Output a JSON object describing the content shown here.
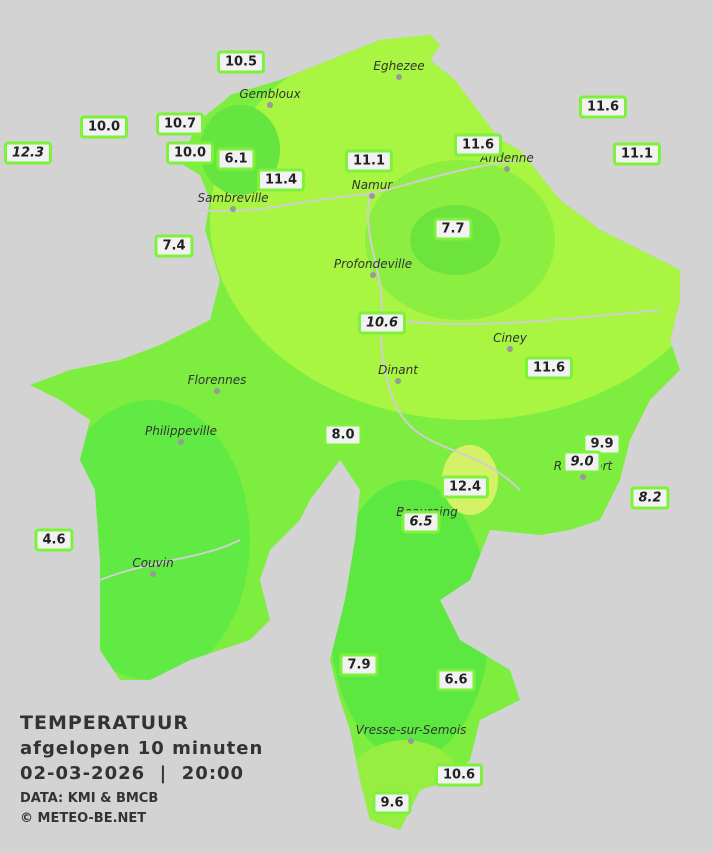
{
  "title": {
    "line1": "TEMPERATUUR",
    "line2": "afgelopen 10 minuten",
    "line3": "02-03-2026  |  20:00",
    "source": "DATA: KMI & BMCB",
    "credit": "© METEO-BE.NET"
  },
  "places": [
    "Eghezee",
    "Gembloux",
    "Andenne",
    "Namur",
    "Sambreville",
    "Profondeville",
    "Ciney",
    "Dinant",
    "Florennes",
    "Philippeville",
    "Beauraing",
    "Rochefort",
    "Couvin",
    "Vresse-sur-Semois"
  ],
  "stations": [
    {
      "label": "10.5",
      "italic": false
    },
    {
      "label": "10.0",
      "italic": false
    },
    {
      "label": "10.7",
      "italic": false
    },
    {
      "label": "12.3",
      "italic": true
    },
    {
      "label": "10.0",
      "italic": false
    },
    {
      "label": "6.1",
      "italic": false
    },
    {
      "label": "11.4",
      "italic": false
    },
    {
      "label": "11.1",
      "italic": false
    },
    {
      "label": "11.6",
      "italic": false
    },
    {
      "label": "11.6",
      "italic": false
    },
    {
      "label": "11.1",
      "italic": false
    },
    {
      "label": "7.4",
      "italic": false
    },
    {
      "label": "7.7",
      "italic": false
    },
    {
      "label": "10.6",
      "italic": true
    },
    {
      "label": "11.6",
      "italic": false
    },
    {
      "label": "8.0",
      "italic": false
    },
    {
      "label": "9.9",
      "italic": false
    },
    {
      "label": "9.0",
      "italic": true
    },
    {
      "label": "8.2",
      "italic": true
    },
    {
      "label": "12.4",
      "italic": false
    },
    {
      "label": "6.5",
      "italic": true
    },
    {
      "label": "4.6",
      "italic": false
    },
    {
      "label": "7.9",
      "italic": false
    },
    {
      "label": "6.6",
      "italic": false
    },
    {
      "label": "10.6",
      "italic": false
    },
    {
      "label": "9.6",
      "italic": false
    }
  ]
}
